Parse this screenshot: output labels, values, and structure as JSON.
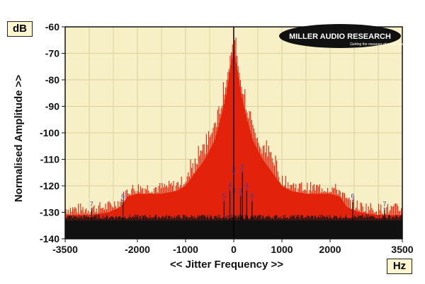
{
  "chart_data": {
    "type": "area",
    "title": "",
    "xlabel": "<< Jitter Frequency >>",
    "ylabel": "Normalised Amplitude >>",
    "x_unit": "Hz",
    "y_unit": "dB",
    "xlim": [
      -3500,
      3500
    ],
    "ylim": [
      -140,
      -60
    ],
    "x_ticks": [
      -3500,
      -2000,
      -1000,
      0,
      1000,
      2000,
      3500
    ],
    "x_tick_labels": [
      "-3500",
      "-2000",
      "-1000",
      "0",
      "1000",
      "2000",
      "3500"
    ],
    "y_ticks": [
      -60,
      -70,
      -80,
      -90,
      -100,
      -110,
      -120,
      -130,
      -140
    ],
    "y_tick_labels": [
      "-60",
      "-70",
      "-80",
      "-90",
      "-100",
      "-110",
      "-120",
      "-130",
      "-140"
    ],
    "grid": true,
    "legend": "none",
    "colors": {
      "plot_background": "#f7f0c6",
      "grid": "#d8cf9a",
      "spectrum": "#e3220b",
      "noise_floor": "#111111",
      "annotation": "#3a3aa0"
    },
    "series": [
      {
        "type": "area",
        "x": [
          -3500,
          -3000,
          -2600,
          -2350,
          -2200,
          -2000,
          -1800,
          -1500,
          -1200,
          -1000,
          -800,
          -600,
          -400,
          -250,
          -150,
          -50,
          0,
          50,
          150,
          250,
          400,
          600,
          800,
          1000,
          1200,
          1500,
          1800,
          2000,
          2200,
          2350,
          2600,
          3000,
          3500
        ],
        "y": [
          -131,
          -131,
          -130,
          -128,
          -124,
          -123,
          -123,
          -123,
          -122,
          -120,
          -115,
          -110,
          -103,
          -93,
          -85,
          -73,
          -68,
          -73,
          -85,
          -93,
          -103,
          -110,
          -115,
          -120,
          -122,
          -123,
          -123,
          -123,
          -124,
          -128,
          -130,
          -131,
          -131
        ]
      },
      {
        "type": "area",
        "x": [
          -3500,
          3500
        ],
        "y": [
          -133,
          -133
        ]
      }
    ],
    "markers": [
      {
        "label": "7",
        "x": -2950,
        "y": -129
      },
      {
        "label": "6",
        "x": -2300,
        "y": -126
      },
      {
        "label": "5",
        "x": -200,
        "y": -126
      },
      {
        "label": "4",
        "x": -80,
        "y": -122
      },
      {
        "label": "3",
        "x": 0,
        "y": -124
      },
      {
        "label": "2",
        "x": 0,
        "y": -116
      },
      {
        "label": "2",
        "x": 180,
        "y": -115
      },
      {
        "label": "3",
        "x": 140,
        "y": -124
      },
      {
        "label": "4",
        "x": 270,
        "y": -122
      },
      {
        "label": "5",
        "x": 380,
        "y": -126
      },
      {
        "label": "6",
        "x": 2470,
        "y": -126
      },
      {
        "label": "7",
        "x": 3130,
        "y": -129
      }
    ]
  },
  "logo": {
    "brand": "MILLER AUDIO RESEARCH",
    "tagline": "Getting the measure of sound quality"
  },
  "axes": {
    "y_unit_label": "dB",
    "x_unit_label": "Hz"
  }
}
